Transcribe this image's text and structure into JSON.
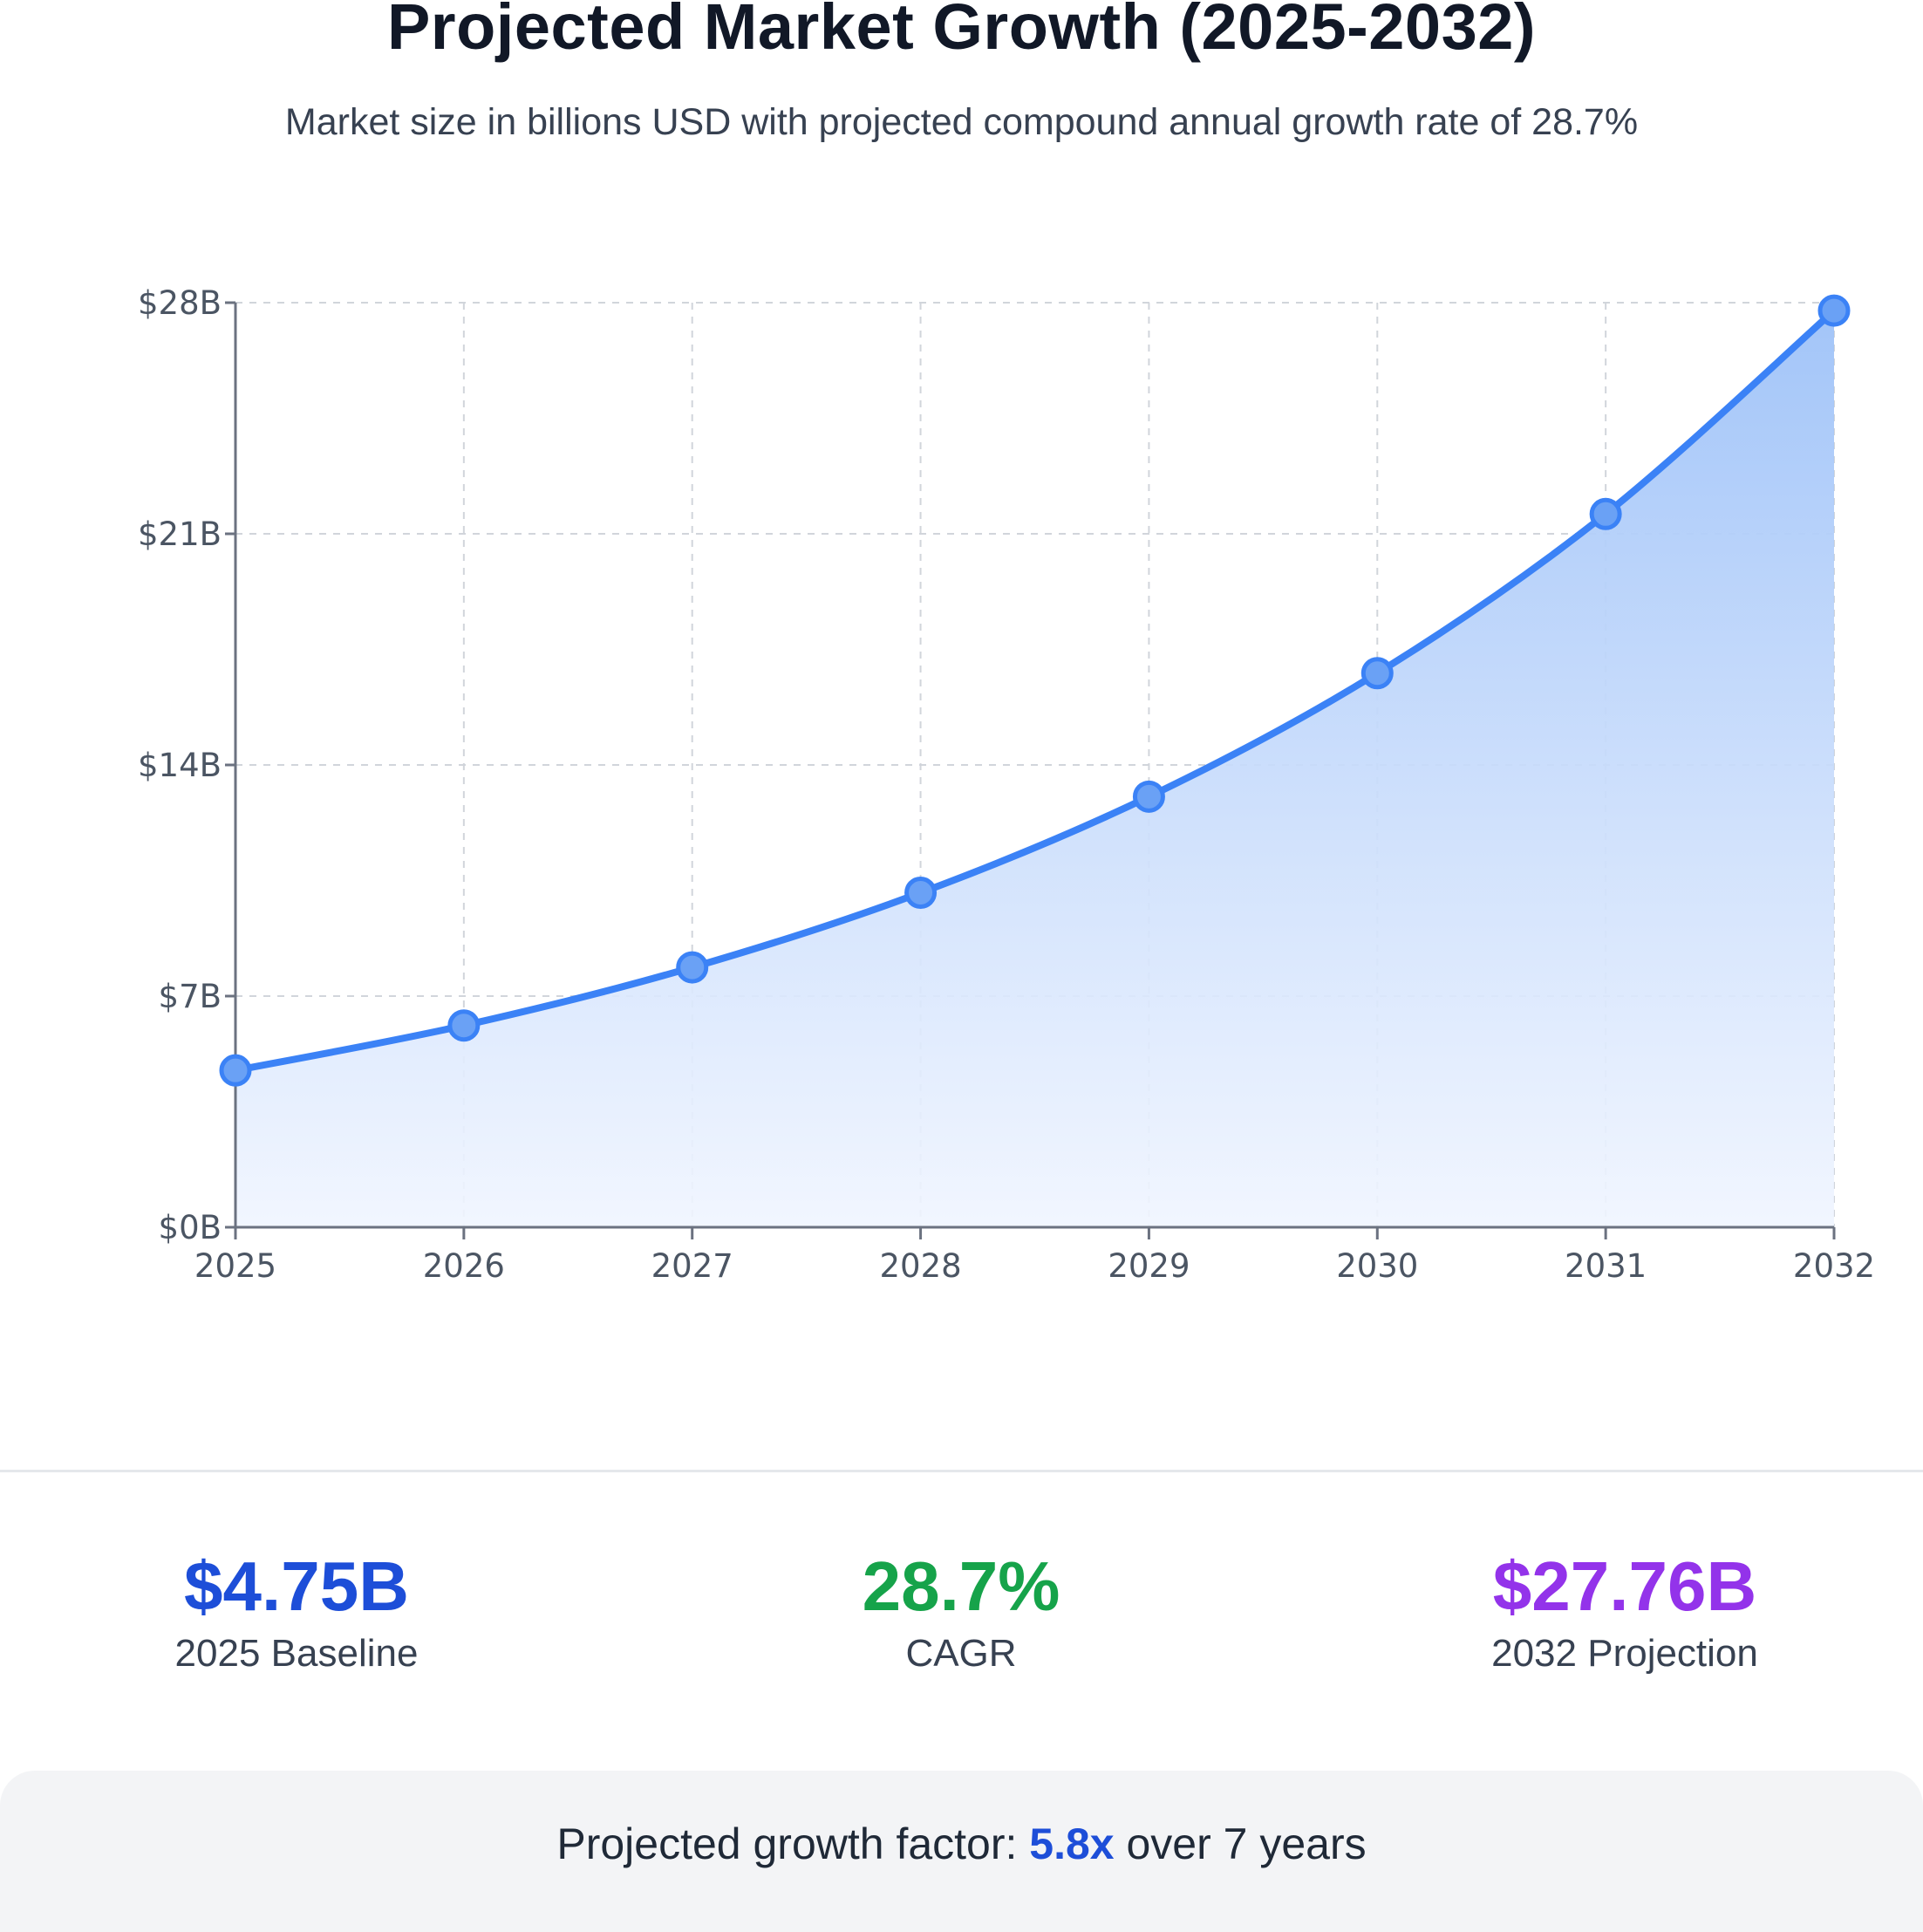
{
  "header": {
    "title": "Projected Market Growth (2025-2032)",
    "subtitle": "Market size in billions USD with projected compound annual growth rate of 28.7%"
  },
  "chart_data": {
    "type": "area",
    "title": "Projected Market Growth (2025-2032)",
    "subtitle": "Market size in billions USD with projected compound annual growth rate of 28.7%",
    "xlabel": "",
    "ylabel": "",
    "x": [
      "2025",
      "2026",
      "2027",
      "2028",
      "2029",
      "2030",
      "2031",
      "2032"
    ],
    "series": [
      {
        "values": [
          4.75,
          6.11,
          7.87,
          10.13,
          13.04,
          16.78,
          21.6,
          27.76
        ]
      }
    ],
    "ylim": [
      0,
      28
    ],
    "yticks": [
      0,
      7,
      14,
      21,
      28
    ],
    "ytick_labels": [
      "$0B",
      "$7B",
      "$14B",
      "$21B",
      "$28B"
    ],
    "grid": true,
    "line_color": "#3b82f6",
    "fill_top_color": "#9ec2f8",
    "fill_bottom_color": "#f0f5ff",
    "marker_color": "#6aa1f5"
  },
  "stats": [
    {
      "value": "$4.75B",
      "label": "2025 Baseline",
      "color": "#1d4ed8"
    },
    {
      "value": "28.7%",
      "label": "CAGR",
      "color": "#16a34a"
    },
    {
      "value": "$27.76B",
      "label": "2032 Projection",
      "color": "#9333ea"
    }
  ],
  "footer": {
    "prefix": "Projected growth factor: ",
    "factor": "5.8x",
    "suffix": " over 7 years",
    "factor_color": "#1d4ed8"
  }
}
